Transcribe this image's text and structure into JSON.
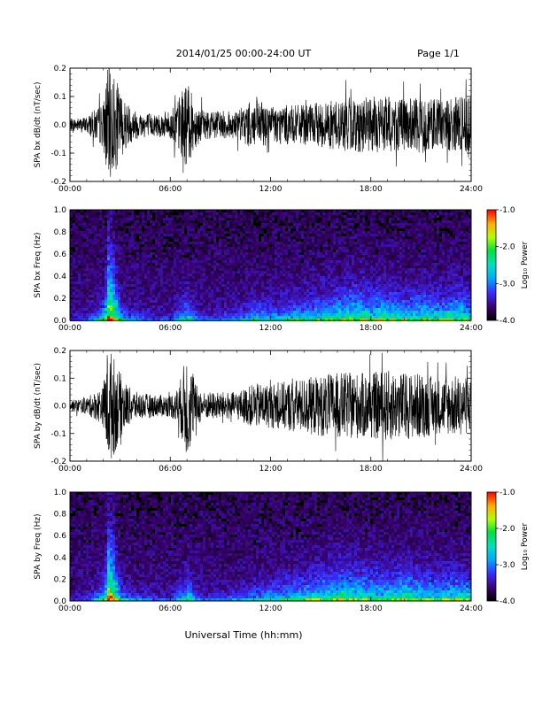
{
  "header": {
    "date_range": "2014/01/25  00:00-24:00 UT",
    "page": "Page 1/1"
  },
  "footer": {
    "xlabel": "Universal Time (hh:mm)"
  },
  "colors": {
    "frame": "#000000",
    "trace": "#000000",
    "background": "#ffffff"
  },
  "chart_data": [
    {
      "type": "line",
      "ylabel": "SPA bx dB/dt (nT/sec)",
      "xlim": [
        0,
        24
      ],
      "ylim": [
        -0.2,
        0.2
      ],
      "x_ticks": [
        "00:00",
        "06:00",
        "12:00",
        "18:00",
        "24:00"
      ],
      "y_ticks": [
        "-0.2",
        "-0.1",
        "0.0",
        "0.1",
        "0.2"
      ],
      "y_tick_values": [
        -0.2,
        -0.1,
        0.0,
        0.1,
        0.2
      ],
      "envelope": {
        "hours": [
          0,
          1,
          2,
          2.2,
          2.5,
          3,
          3.5,
          4,
          5,
          6,
          6.5,
          7,
          7.5,
          8,
          9,
          10,
          11,
          12,
          13,
          14,
          15,
          16,
          17,
          18,
          19,
          20,
          21,
          22,
          23,
          24
        ],
        "amplitude": [
          0.02,
          0.03,
          0.08,
          0.2,
          0.2,
          0.12,
          0.07,
          0.05,
          0.04,
          0.05,
          0.1,
          0.15,
          0.08,
          0.05,
          0.05,
          0.05,
          0.09,
          0.07,
          0.07,
          0.07,
          0.08,
          0.09,
          0.1,
          0.1,
          0.1,
          0.09,
          0.1,
          0.09,
          0.1,
          0.1
        ]
      }
    },
    {
      "type": "heatmap",
      "ylabel": "SPA bx Freq (Hz)",
      "xlim": [
        0,
        24
      ],
      "ylim": [
        0.0,
        1.0
      ],
      "x_ticks": [
        "00:00",
        "06:00",
        "12:00",
        "18:00",
        "24:00"
      ],
      "y_ticks": [
        "0.0",
        "0.2",
        "0.4",
        "0.6",
        "0.8",
        "1.0"
      ],
      "y_tick_values": [
        0.0,
        0.2,
        0.4,
        0.6,
        0.8,
        1.0
      ],
      "colorbar": {
        "label": "Log₁₀ Power",
        "range": [
          -4.0,
          -1.0
        ],
        "ticks": [
          "-1.0",
          "-2.0",
          "-3.0",
          "-4.0"
        ],
        "tick_values": [
          -1.0,
          -2.0,
          -3.0,
          -4.0
        ]
      },
      "activity": {
        "hours": [
          0,
          1,
          2,
          2.2,
          2.5,
          3,
          3.5,
          4,
          5,
          6,
          6.5,
          7,
          7.5,
          8,
          9,
          10,
          11,
          12,
          13,
          14,
          15,
          16,
          17,
          18,
          19,
          20,
          21,
          22,
          23,
          24
        ],
        "level": [
          0.1,
          0.2,
          0.5,
          1.0,
          0.9,
          0.4,
          0.3,
          0.25,
          0.2,
          0.2,
          0.4,
          0.5,
          0.3,
          0.2,
          0.25,
          0.3,
          0.45,
          0.4,
          0.45,
          0.5,
          0.55,
          0.6,
          0.65,
          0.6,
          0.6,
          0.55,
          0.6,
          0.55,
          0.6,
          0.55
        ]
      }
    },
    {
      "type": "line",
      "ylabel": "SPA by dB/dt (nT/sec)",
      "xlim": [
        0,
        24
      ],
      "ylim": [
        -0.2,
        0.2
      ],
      "x_ticks": [
        "00:00",
        "06:00",
        "12:00",
        "18:00",
        "24:00"
      ],
      "y_ticks": [
        "-0.2",
        "-0.1",
        "0.0",
        "0.1",
        "0.2"
      ],
      "y_tick_values": [
        -0.2,
        -0.1,
        0.0,
        0.1,
        0.2
      ],
      "envelope": {
        "hours": [
          0,
          1,
          2,
          2.2,
          2.5,
          3,
          3.5,
          4,
          5,
          6,
          6.5,
          7,
          7.5,
          8,
          9,
          10,
          11,
          12,
          13,
          14,
          15,
          16,
          17,
          18,
          19,
          20,
          21,
          22,
          23,
          24
        ],
        "amplitude": [
          0.02,
          0.03,
          0.07,
          0.2,
          0.2,
          0.12,
          0.07,
          0.05,
          0.04,
          0.04,
          0.07,
          0.2,
          0.08,
          0.05,
          0.05,
          0.05,
          0.08,
          0.08,
          0.09,
          0.1,
          0.11,
          0.12,
          0.12,
          0.12,
          0.13,
          0.12,
          0.12,
          0.1,
          0.11,
          0.1
        ]
      }
    },
    {
      "type": "heatmap",
      "ylabel": "SPA by Freq (Hz)",
      "xlim": [
        0,
        24
      ],
      "ylim": [
        0.0,
        1.0
      ],
      "x_ticks": [
        "00:00",
        "06:00",
        "12:00",
        "18:00",
        "24:00"
      ],
      "y_ticks": [
        "0.0",
        "0.2",
        "0.4",
        "0.6",
        "0.8",
        "1.0"
      ],
      "y_tick_values": [
        0.0,
        0.2,
        0.4,
        0.6,
        0.8,
        1.0
      ],
      "colorbar": {
        "label": "Log₁₀ Power",
        "range": [
          -4.0,
          -1.0
        ],
        "ticks": [
          "-1.0",
          "-2.0",
          "-3.0",
          "-4.0"
        ],
        "tick_values": [
          -1.0,
          -2.0,
          -3.0,
          -4.0
        ]
      },
      "activity": {
        "hours": [
          0,
          1,
          2,
          2.2,
          2.5,
          3,
          3.5,
          4,
          5,
          6,
          6.5,
          7,
          7.5,
          8,
          9,
          10,
          11,
          12,
          13,
          14,
          15,
          16,
          17,
          18,
          19,
          20,
          21,
          22,
          23,
          24
        ],
        "level": [
          0.1,
          0.2,
          0.5,
          1.0,
          0.9,
          0.4,
          0.3,
          0.25,
          0.2,
          0.2,
          0.4,
          0.55,
          0.3,
          0.2,
          0.25,
          0.3,
          0.4,
          0.45,
          0.5,
          0.55,
          0.6,
          0.65,
          0.65,
          0.6,
          0.6,
          0.65,
          0.6,
          0.55,
          0.6,
          0.55
        ]
      }
    }
  ]
}
